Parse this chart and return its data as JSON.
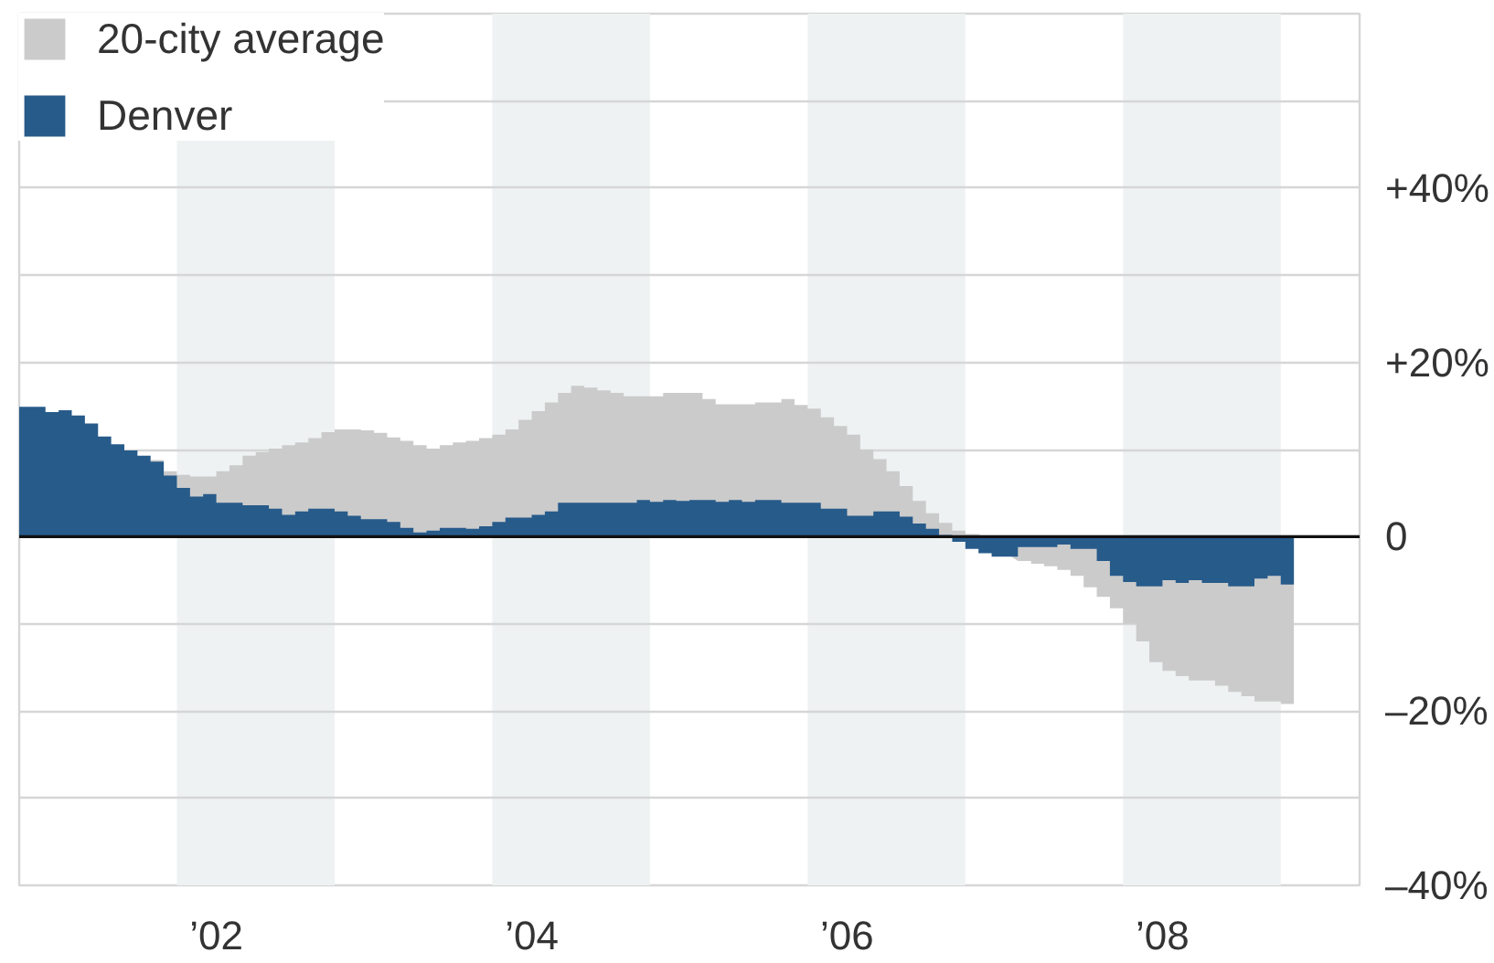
{
  "chart_data": {
    "type": "area",
    "x": [
      "2001-01",
      "2001-02",
      "2001-03",
      "2001-04",
      "2001-05",
      "2001-06",
      "2001-07",
      "2001-08",
      "2001-09",
      "2001-10",
      "2001-11",
      "2001-12",
      "2002-01",
      "2002-02",
      "2002-03",
      "2002-04",
      "2002-05",
      "2002-06",
      "2002-07",
      "2002-08",
      "2002-09",
      "2002-10",
      "2002-11",
      "2002-12",
      "2003-01",
      "2003-02",
      "2003-03",
      "2003-04",
      "2003-05",
      "2003-06",
      "2003-07",
      "2003-08",
      "2003-09",
      "2003-10",
      "2003-11",
      "2003-12",
      "2004-01",
      "2004-02",
      "2004-03",
      "2004-04",
      "2004-05",
      "2004-06",
      "2004-07",
      "2004-08",
      "2004-09",
      "2004-10",
      "2004-11",
      "2004-12",
      "2005-01",
      "2005-02",
      "2005-03",
      "2005-04",
      "2005-05",
      "2005-06",
      "2005-07",
      "2005-08",
      "2005-09",
      "2005-10",
      "2005-11",
      "2005-12",
      "2006-01",
      "2006-02",
      "2006-03",
      "2006-04",
      "2006-05",
      "2006-06",
      "2006-07",
      "2006-08",
      "2006-09",
      "2006-10",
      "2006-11",
      "2006-12",
      "2007-01",
      "2007-02",
      "2007-03",
      "2007-04",
      "2007-05",
      "2007-06",
      "2007-07",
      "2007-08",
      "2007-09",
      "2007-10",
      "2007-11",
      "2007-12",
      "2008-01",
      "2008-02",
      "2008-03",
      "2008-04",
      "2008-05",
      "2008-06",
      "2008-07",
      "2008-08",
      "2008-09",
      "2008-10",
      "2008-11",
      "2008-12",
      "2009-01",
      "2009-02"
    ],
    "series": [
      {
        "name": "20-city average",
        "color": "#cbcbcb",
        "values": [
          null,
          null,
          null,
          null,
          null,
          null,
          null,
          null,
          null,
          null,
          8.8,
          7.5,
          7.1,
          6.9,
          6.9,
          7.5,
          8.2,
          9.3,
          9.7,
          10.1,
          10.5,
          10.8,
          11.3,
          12.0,
          12.3,
          12.3,
          12.2,
          11.9,
          11.4,
          11.0,
          10.5,
          10.1,
          10.5,
          10.8,
          11.0,
          11.3,
          11.7,
          12.3,
          13.4,
          14.4,
          15.4,
          16.5,
          17.3,
          17.1,
          16.8,
          16.5,
          16.1,
          16.1,
          16.1,
          16.5,
          16.5,
          16.5,
          15.8,
          15.2,
          15.2,
          15.2,
          15.4,
          15.4,
          15.8,
          15.1,
          14.7,
          13.7,
          12.7,
          11.7,
          10.0,
          8.9,
          7.5,
          5.8,
          4.1,
          2.7,
          1.6,
          0.7,
          0.3,
          null,
          null,
          null,
          -2.8,
          -3.1,
          -3.4,
          -3.8,
          -4.5,
          -5.8,
          -6.9,
          -8.2,
          -10.0,
          -12.0,
          -14.4,
          -15.4,
          -16.0,
          -16.5,
          -16.5,
          -17.1,
          -17.8,
          -18.3,
          -18.9,
          -18.9,
          -19.2,
          -19.0
        ]
      },
      {
        "name": "Denver",
        "color": "#275b8a",
        "values": [
          14.9,
          14.9,
          14.3,
          14.5,
          13.9,
          13.0,
          11.5,
          10.6,
          9.9,
          9.3,
          8.6,
          7.0,
          5.6,
          4.6,
          4.9,
          3.9,
          3.9,
          3.6,
          3.6,
          3.2,
          2.5,
          2.9,
          3.2,
          3.2,
          2.9,
          2.4,
          2.0,
          2.0,
          1.7,
          1.0,
          0.5,
          0.7,
          1.0,
          1.0,
          0.9,
          1.2,
          1.7,
          2.2,
          2.2,
          2.5,
          2.9,
          3.9,
          3.9,
          3.9,
          3.9,
          3.9,
          3.9,
          4.2,
          4.0,
          4.2,
          4.1,
          4.2,
          4.2,
          4.0,
          4.2,
          4.0,
          4.2,
          4.2,
          3.9,
          3.9,
          3.9,
          3.2,
          3.2,
          2.4,
          2.4,
          2.9,
          2.9,
          2.3,
          1.5,
          0.9,
          0.2,
          -0.6,
          -1.4,
          -1.9,
          -2.3,
          -2.3,
          -1.2,
          -1.2,
          -1.2,
          -0.9,
          -1.4,
          -1.4,
          -2.8,
          -4.5,
          -5.2,
          -5.7,
          -5.7,
          -5.0,
          -5.3,
          -5.0,
          -5.3,
          -5.3,
          -5.7,
          -5.7,
          -4.8,
          -4.5,
          -5.5,
          -6.0
        ]
      }
    ],
    "xlim": [
      "2001-01",
      "2009-07"
    ],
    "xticks": [
      {
        "value": "2002-04",
        "label": "’02"
      },
      {
        "value": "2004-04",
        "label": "’04"
      },
      {
        "value": "2006-04",
        "label": "’06"
      },
      {
        "value": "2008-04",
        "label": "’08"
      }
    ],
    "ylim": [
      -40,
      60
    ],
    "yticks": [
      {
        "value": 60,
        "label": null
      },
      {
        "value": 50,
        "label": null
      },
      {
        "value": 40,
        "label": "+40%"
      },
      {
        "value": 30,
        "label": null
      },
      {
        "value": 20,
        "label": "+20%"
      },
      {
        "value": 10,
        "label": null
      },
      0,
      {
        "value": -10,
        "label": null
      },
      {
        "value": -20,
        "label": "–20%"
      },
      {
        "value": -30,
        "label": null
      },
      {
        "value": -40,
        "label": "–40%"
      }
    ],
    "grid": "y",
    "legend": "top left",
    "bands": [
      {
        "axis": "x",
        "from": "2002-01",
        "to": "2003-01",
        "color": "#eef2f3"
      },
      {
        "axis": "x",
        "from": "2004-01",
        "to": "2005-01",
        "color": "#eef2f3"
      },
      {
        "axis": "x",
        "from": "2006-01",
        "to": "2007-01",
        "color": "#eef2f3"
      },
      {
        "axis": "x",
        "from": "2008-01",
        "to": "2009-01",
        "color": "#eef2f3"
      }
    ],
    "ref_lines": [
      {
        "axis": "y",
        "value": 0,
        "color": "#111111"
      }
    ]
  }
}
